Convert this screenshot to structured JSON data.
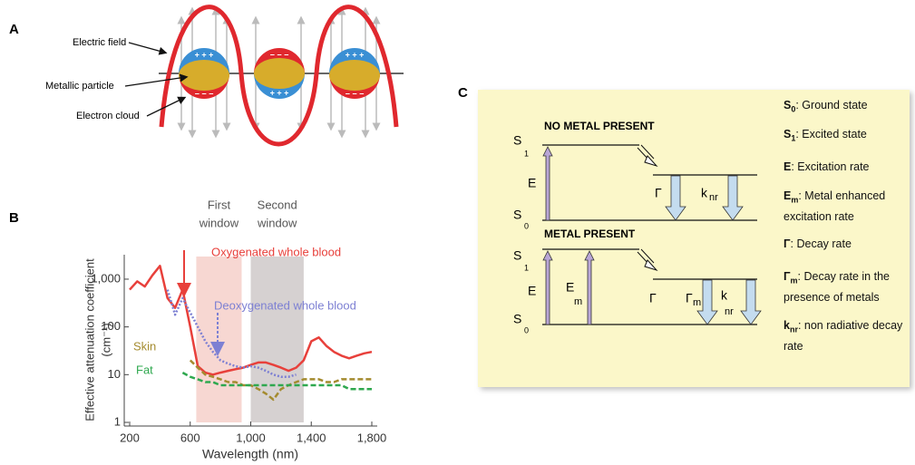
{
  "panel_a": {
    "label": "A",
    "electric_field": "Electric field",
    "metallic_particle": "Metallic particle",
    "electron_cloud": "Electron cloud",
    "plus": "+ + +",
    "minus": "− − −"
  },
  "chart_data": {
    "type": "line",
    "panel_label": "B",
    "xlabel": "Wavelength (nm)",
    "ylabel": [
      "Effective attenuation coefficient",
      "(cm⁻¹)"
    ],
    "x": [
      200,
      250,
      300,
      350,
      400,
      450,
      500,
      550,
      600,
      650,
      700,
      750,
      800,
      850,
      900,
      950,
      1000,
      1050,
      1100,
      1150,
      1200,
      1250,
      1300,
      1350,
      1400,
      1450,
      1500,
      1550,
      1600,
      1650,
      1700,
      1750,
      1800
    ],
    "series": [
      {
        "name": "Oxygenated whole blood",
        "color": "#e8403b",
        "dash": "solid",
        "values": [
          600,
          900,
          700,
          1200,
          1900,
          400,
          250,
          600,
          100,
          15,
          11,
          10,
          11,
          12,
          13,
          14,
          16,
          18,
          18,
          16,
          14,
          12,
          14,
          20,
          50,
          60,
          40,
          30,
          25,
          22,
          25,
          28,
          30
        ]
      },
      {
        "name": "Deoxygenated whole blood",
        "color": "#7d80d3",
        "dash": "dotted",
        "values": [
          null,
          null,
          null,
          null,
          null,
          600,
          180,
          400,
          200,
          100,
          50,
          30,
          20,
          17,
          15,
          14,
          15,
          14,
          12,
          10,
          9,
          9,
          10,
          null,
          null,
          null,
          null,
          null,
          null,
          null,
          null,
          null,
          null
        ]
      },
      {
        "name": "Skin",
        "color": "#a48b2f",
        "dash": "dashed",
        "values": [
          null,
          null,
          null,
          null,
          null,
          null,
          null,
          null,
          20,
          14,
          10,
          9,
          8,
          7,
          7,
          6,
          6,
          5,
          4,
          3,
          5,
          6,
          7,
          8,
          8,
          8,
          7,
          7,
          8,
          8,
          8,
          8,
          8
        ]
      },
      {
        "name": "Fat",
        "color": "#2fa84f",
        "dash": "dashed",
        "values": [
          null,
          null,
          null,
          null,
          null,
          null,
          null,
          11,
          9,
          8,
          7,
          7,
          6,
          6,
          6,
          6,
          6,
          6,
          6,
          6,
          6,
          6,
          6,
          6,
          6,
          6,
          6,
          6,
          6,
          5,
          5,
          5,
          5
        ]
      }
    ],
    "xlim": [
      200,
      1800
    ],
    "xticks": [
      200,
      600,
      {
        "value": 1000,
        "label": "1,000"
      },
      {
        "value": 1400,
        "label": "1,400"
      },
      {
        "value": 1800,
        "label": "1,800"
      }
    ],
    "ylim": [
      1,
      2500
    ],
    "yticks": [
      1,
      10,
      100,
      {
        "value": 1000,
        "label": "1,000"
      }
    ],
    "log_y": true,
    "windows": [
      {
        "label": [
          "First",
          "window"
        ],
        "range": [
          640,
          940
        ],
        "color": "#f6d0ca"
      },
      {
        "label": [
          "Second",
          "window"
        ],
        "range": [
          1000,
          1350
        ],
        "color": "#cfc9c9"
      }
    ]
  },
  "panel_c": {
    "label": "C",
    "no_metal": "NO METAL PRESENT",
    "metal": "METAL PRESENT",
    "s": "S",
    "s1": "1",
    "s0": "0",
    "e": "E",
    "em": {
      "symbol": "E",
      "sub": "m"
    },
    "gamma": "Γ",
    "gamma_m": {
      "symbol": "Γ",
      "sub": "m"
    },
    "knr": {
      "symbol": "k",
      "sub": "nr"
    },
    "legend": [
      {
        "symbol": "S",
        "sub": "0",
        "text": ": Ground state"
      },
      {
        "symbol": "S",
        "sub": "1",
        "text": ": Excited state"
      },
      {
        "symbol": "E",
        "text": ": Excitation rate"
      },
      {
        "symbol": "E",
        "sub": "m",
        "text": ": Metal enhanced excitation rate"
      },
      {
        "symbol": "Γ",
        "text": ": Decay rate"
      },
      {
        "symbol": "Γ",
        "sub": "m",
        "text": ": Decay rate in the presence of metals"
      },
      {
        "symbol": "k",
        "sub": "nr",
        "text": ": non radiative decay rate"
      }
    ]
  }
}
